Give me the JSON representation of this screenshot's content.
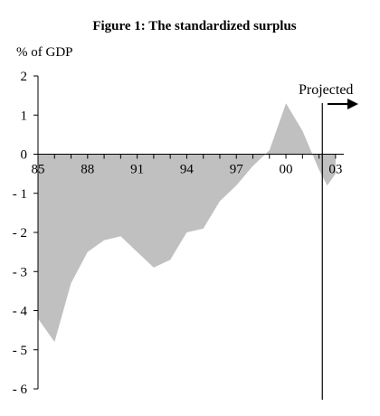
{
  "chart_data": {
    "type": "area",
    "title": "Figure 1: The standardized surplus",
    "ylabel": "% of GDP",
    "xlabel": "",
    "ylim": [
      -6,
      2
    ],
    "yticks": [
      2,
      1,
      0,
      -1,
      -2,
      -3,
      -4,
      -5,
      -6
    ],
    "xlim": [
      1985,
      2003.5
    ],
    "xticks": [
      {
        "year": 1985,
        "label": "85"
      },
      {
        "year": 1988,
        "label": "88"
      },
      {
        "year": 1991,
        "label": "91"
      },
      {
        "year": 1994,
        "label": "94"
      },
      {
        "year": 1997,
        "label": "97"
      },
      {
        "year": 2000,
        "label": "00"
      },
      {
        "year": 2003,
        "label": "03"
      }
    ],
    "grid": false,
    "legend": "none",
    "fill_color": "#c0c0c0",
    "series": [
      {
        "x": [
          1985,
          1986,
          1987,
          1988,
          1989,
          1990,
          1991,
          1992,
          1993,
          1994,
          1995,
          1996,
          1997,
          1998,
          1999,
          2000,
          2001,
          2002,
          2002.5,
          2003
        ],
        "values": [
          -4.2,
          -4.8,
          -3.3,
          -2.5,
          -2.2,
          -2.1,
          -2.5,
          -2.9,
          -2.7,
          -2.0,
          -1.9,
          -1.2,
          -0.8,
          -0.3,
          0.1,
          1.3,
          0.6,
          -0.4,
          -0.8,
          -0.5
        ]
      }
    ],
    "annotation": {
      "text": "Projected",
      "divider_year": 2002.2
    }
  }
}
